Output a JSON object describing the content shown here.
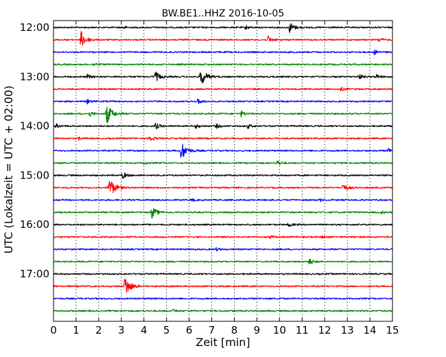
{
  "chart_data": {
    "type": "line",
    "title": "BW.BE1..HHZ 2016-10-05",
    "xlabel": "Zeit  [min]",
    "ylabel": "UTC (Lokalzeit = UTC + 02:00)",
    "xlim": [
      0,
      15
    ],
    "x_ticks": [
      "0",
      "1",
      "2",
      "3",
      "4",
      "5",
      "6",
      "7",
      "8",
      "9",
      "10",
      "11",
      "12",
      "13",
      "14",
      "15"
    ],
    "y_ticks": [
      "12:00",
      "13:00",
      "14:00",
      "15:00",
      "16:00",
      "17:00"
    ],
    "grid": "vertical dotted",
    "colors": [
      "#000000",
      "#ff0000",
      "#0000ff",
      "#008000"
    ],
    "traces": [
      {
        "start": "12:00",
        "color": "#000000",
        "events": [
          [
            3.1,
            0.2
          ],
          [
            8.5,
            0.3
          ],
          [
            10.45,
            0.8
          ]
        ]
      },
      {
        "start": "12:15",
        "color": "#ff0000",
        "events": [
          [
            1.2,
            1.3
          ],
          [
            9.5,
            0.5
          ],
          [
            14.4,
            0.3
          ]
        ]
      },
      {
        "start": "12:30",
        "color": "#0000ff",
        "events": [
          [
            14.2,
            0.3
          ]
        ]
      },
      {
        "start": "12:45",
        "color": "#008000",
        "events": [
          [
            1.8,
            0.3
          ]
        ]
      },
      {
        "start": "13:00",
        "color": "#000000",
        "events": [
          [
            1.5,
            0.3
          ],
          [
            4.5,
            0.8
          ],
          [
            6.5,
            1.4
          ],
          [
            13.5,
            0.4
          ],
          [
            14.3,
            0.3
          ]
        ]
      },
      {
        "start": "13:15",
        "color": "#ff0000",
        "events": [
          [
            12.7,
            0.3
          ]
        ]
      },
      {
        "start": "13:30",
        "color": "#0000ff",
        "events": [
          [
            1.5,
            0.3
          ],
          [
            6.4,
            0.4
          ]
        ]
      },
      {
        "start": "13:45",
        "color": "#008000",
        "events": [
          [
            1.6,
            0.4
          ],
          [
            2.35,
            1.5
          ],
          [
            8.3,
            0.4
          ]
        ]
      },
      {
        "start": "14:00",
        "color": "#000000",
        "events": [
          [
            0.1,
            0.3
          ],
          [
            4.5,
            0.5
          ],
          [
            6.3,
            0.3
          ],
          [
            7.2,
            0.3
          ],
          [
            8.6,
            0.3
          ]
        ]
      },
      {
        "start": "14:15",
        "color": "#ff0000",
        "events": [
          [
            4.2,
            0.6
          ],
          [
            1.1,
            0.2
          ]
        ]
      },
      {
        "start": "14:30",
        "color": "#0000ff",
        "events": [
          [
            5.65,
            1.4
          ],
          [
            14.8,
            0.4
          ]
        ]
      },
      {
        "start": "14:45",
        "color": "#008000",
        "events": [
          [
            9.9,
            0.4
          ],
          [
            4.0,
            0.2
          ]
        ]
      },
      {
        "start": "15:00",
        "color": "#000000",
        "events": [
          [
            3.05,
            0.5
          ]
        ]
      },
      {
        "start": "15:15",
        "color": "#ff0000",
        "events": [
          [
            2.45,
            1.6
          ],
          [
            12.8,
            0.6
          ]
        ]
      },
      {
        "start": "15:30",
        "color": "#0000ff",
        "events": [
          [
            6.1,
            0.2
          ],
          [
            11.8,
            0.2
          ]
        ]
      },
      {
        "start": "15:45",
        "color": "#008000",
        "events": [
          [
            4.35,
            0.9
          ],
          [
            14.5,
            0.2
          ]
        ]
      },
      {
        "start": "16:00",
        "color": "#000000",
        "events": [
          [
            10.4,
            0.3
          ]
        ]
      },
      {
        "start": "16:15",
        "color": "#ff0000",
        "events": [
          [
            9.6,
            0.2
          ],
          [
            11.9,
            0.2
          ]
        ]
      },
      {
        "start": "16:30",
        "color": "#0000ff",
        "events": [
          [
            7.2,
            0.2
          ]
        ]
      },
      {
        "start": "16:45",
        "color": "#008000",
        "events": [
          [
            11.3,
            0.5
          ]
        ]
      },
      {
        "start": "17:00",
        "color": "#000000",
        "events": []
      },
      {
        "start": "17:15",
        "color": "#ff0000",
        "events": [
          [
            3.15,
            1.6
          ]
        ]
      },
      {
        "start": "17:30",
        "color": "#0000ff",
        "events": []
      },
      {
        "start": "17:45",
        "color": "#008000",
        "events": [
          [
            5.3,
            0.2
          ]
        ]
      }
    ]
  }
}
